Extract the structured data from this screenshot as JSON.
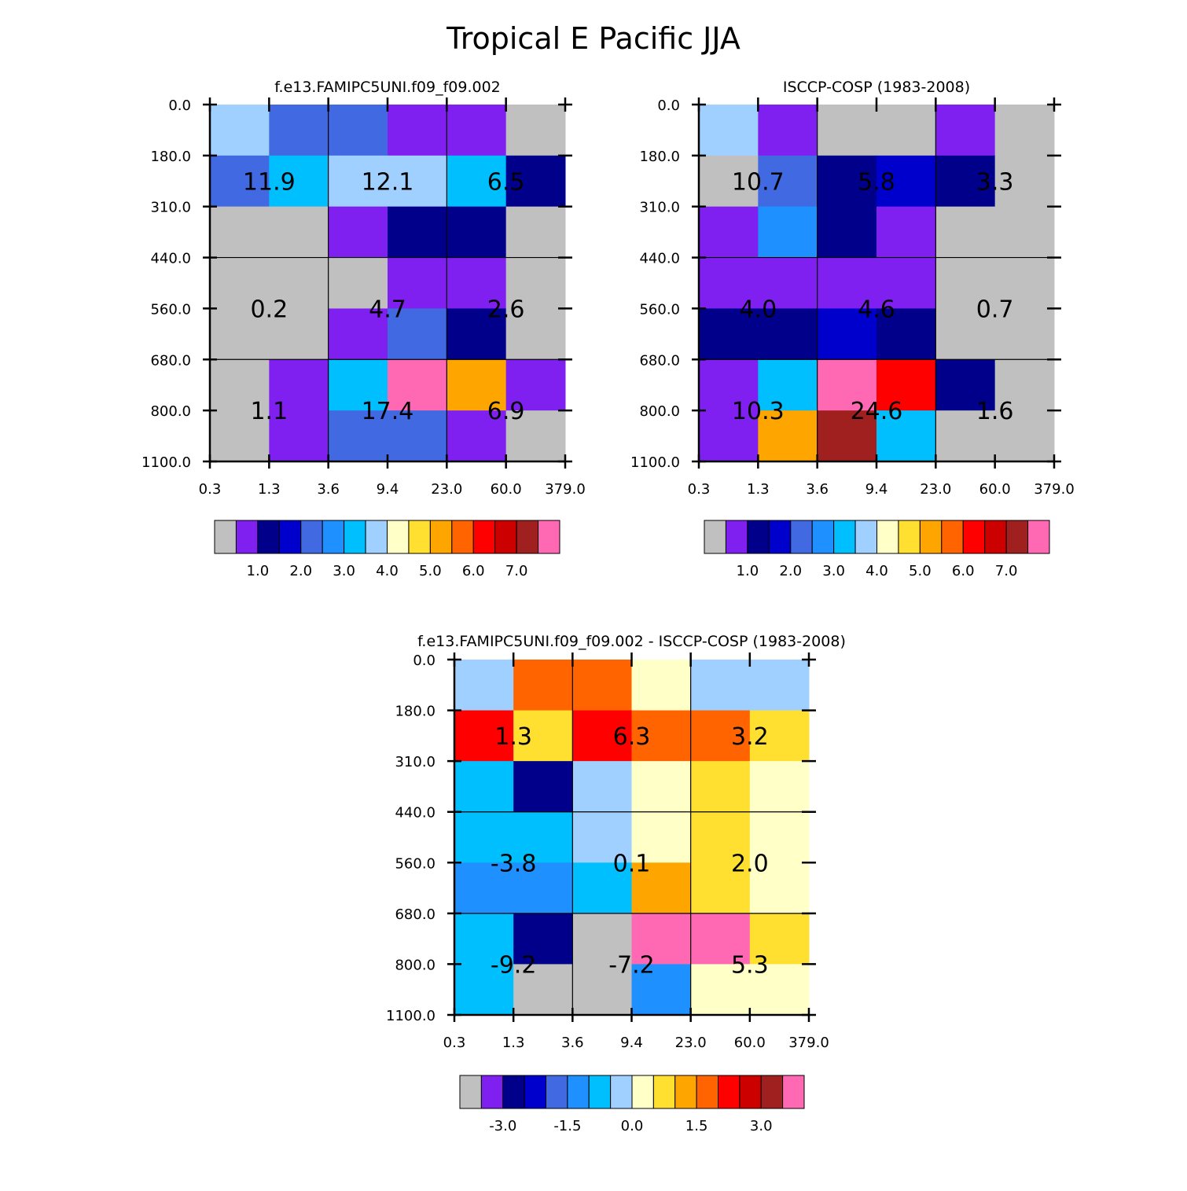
{
  "title": "Tropical E Pacific JJA",
  "colors": {
    "scale": [
      "#c0c0c0",
      "#8020f0",
      "#00008b",
      "#0000cd",
      "#4169e1",
      "#1e90ff",
      "#00bfff",
      "#a0d0ff",
      "#ffffc8",
      "#ffe030",
      "#ffa500",
      "#ff6400",
      "#ff0000",
      "#cd0000",
      "#a02020",
      "#ff69b4"
    ],
    "grid_line": "#000000",
    "background": "#ffffff"
  },
  "chart_data": [
    {
      "type": "heatmap",
      "title": "f.e13.FAMIPC5UNI.f09_f09.002",
      "x_ticks": [
        "0.3",
        "1.3",
        "3.6",
        "9.4",
        "23.0",
        "60.0",
        "379.0"
      ],
      "y_ticks": [
        "0.0",
        "180.0",
        "310.0",
        "440.0",
        "560.0",
        "680.0",
        "800.0",
        "1100.0"
      ],
      "cells": [
        [
          7,
          4,
          4,
          1,
          1,
          0
        ],
        [
          4,
          6,
          7,
          7,
          6,
          2
        ],
        [
          0,
          0,
          1,
          2,
          2,
          0
        ],
        [
          0,
          0,
          0,
          1,
          1,
          0
        ],
        [
          0,
          0,
          1,
          4,
          2,
          0
        ],
        [
          0,
          1,
          6,
          15,
          10,
          1
        ],
        [
          0,
          1,
          4,
          4,
          1,
          0
        ]
      ],
      "aggregates": [
        "11.9",
        "12.1",
        "6.5",
        "0.2",
        "4.7",
        "2.6",
        "1.1",
        "17.4",
        "6.9"
      ],
      "colorbar_labels": [
        "1.0",
        "2.0",
        "3.0",
        "4.0",
        "5.0",
        "6.0",
        "7.0"
      ]
    },
    {
      "type": "heatmap",
      "title": "ISCCP-COSP (1983-2008)",
      "x_ticks": [
        "0.3",
        "1.3",
        "3.6",
        "9.4",
        "23.0",
        "60.0",
        "379.0"
      ],
      "y_ticks": [
        "0.0",
        "180.0",
        "310.0",
        "440.0",
        "560.0",
        "680.0",
        "800.0",
        "1100.0"
      ],
      "cells": [
        [
          7,
          1,
          0,
          0,
          1,
          0
        ],
        [
          0,
          4,
          2,
          3,
          2,
          0
        ],
        [
          1,
          5,
          2,
          1,
          0,
          0
        ],
        [
          1,
          1,
          1,
          1,
          0,
          0
        ],
        [
          2,
          2,
          3,
          2,
          0,
          0
        ],
        [
          1,
          6,
          15,
          12,
          2,
          0
        ],
        [
          1,
          10,
          14,
          6,
          0,
          0
        ]
      ],
      "aggregates": [
        "10.7",
        "5.8",
        "3.3",
        "4.0",
        "4.6",
        "0.7",
        "10.3",
        "24.6",
        "1.6"
      ],
      "colorbar_labels": [
        "1.0",
        "2.0",
        "3.0",
        "4.0",
        "5.0",
        "6.0",
        "7.0"
      ]
    },
    {
      "type": "heatmap",
      "title": "f.e13.FAMIPC5UNI.f09_f09.002 - ISCCP-COSP (1983-2008)",
      "x_ticks": [
        "0.3",
        "1.3",
        "3.6",
        "9.4",
        "23.0",
        "60.0",
        "379.0"
      ],
      "y_ticks": [
        "0.0",
        "180.0",
        "310.0",
        "440.0",
        "560.0",
        "680.0",
        "800.0",
        "1100.0"
      ],
      "cells": [
        [
          7,
          11,
          11,
          8,
          7,
          7
        ],
        [
          12,
          9,
          12,
          11,
          11,
          9
        ],
        [
          6,
          2,
          7,
          8,
          9,
          8
        ],
        [
          6,
          6,
          7,
          8,
          9,
          8
        ],
        [
          5,
          5,
          6,
          10,
          9,
          8
        ],
        [
          6,
          2,
          0,
          15,
          15,
          9
        ],
        [
          6,
          0,
          0,
          5,
          8,
          8
        ]
      ],
      "aggregates": [
        "1.3",
        "6.3",
        "3.2",
        "-3.8",
        "0.1",
        "2.0",
        "-9.2",
        "-7.2",
        "5.3"
      ],
      "colorbar_labels": [
        "-3.0",
        "-1.5",
        "0.0",
        "1.5",
        "3.0"
      ]
    }
  ]
}
